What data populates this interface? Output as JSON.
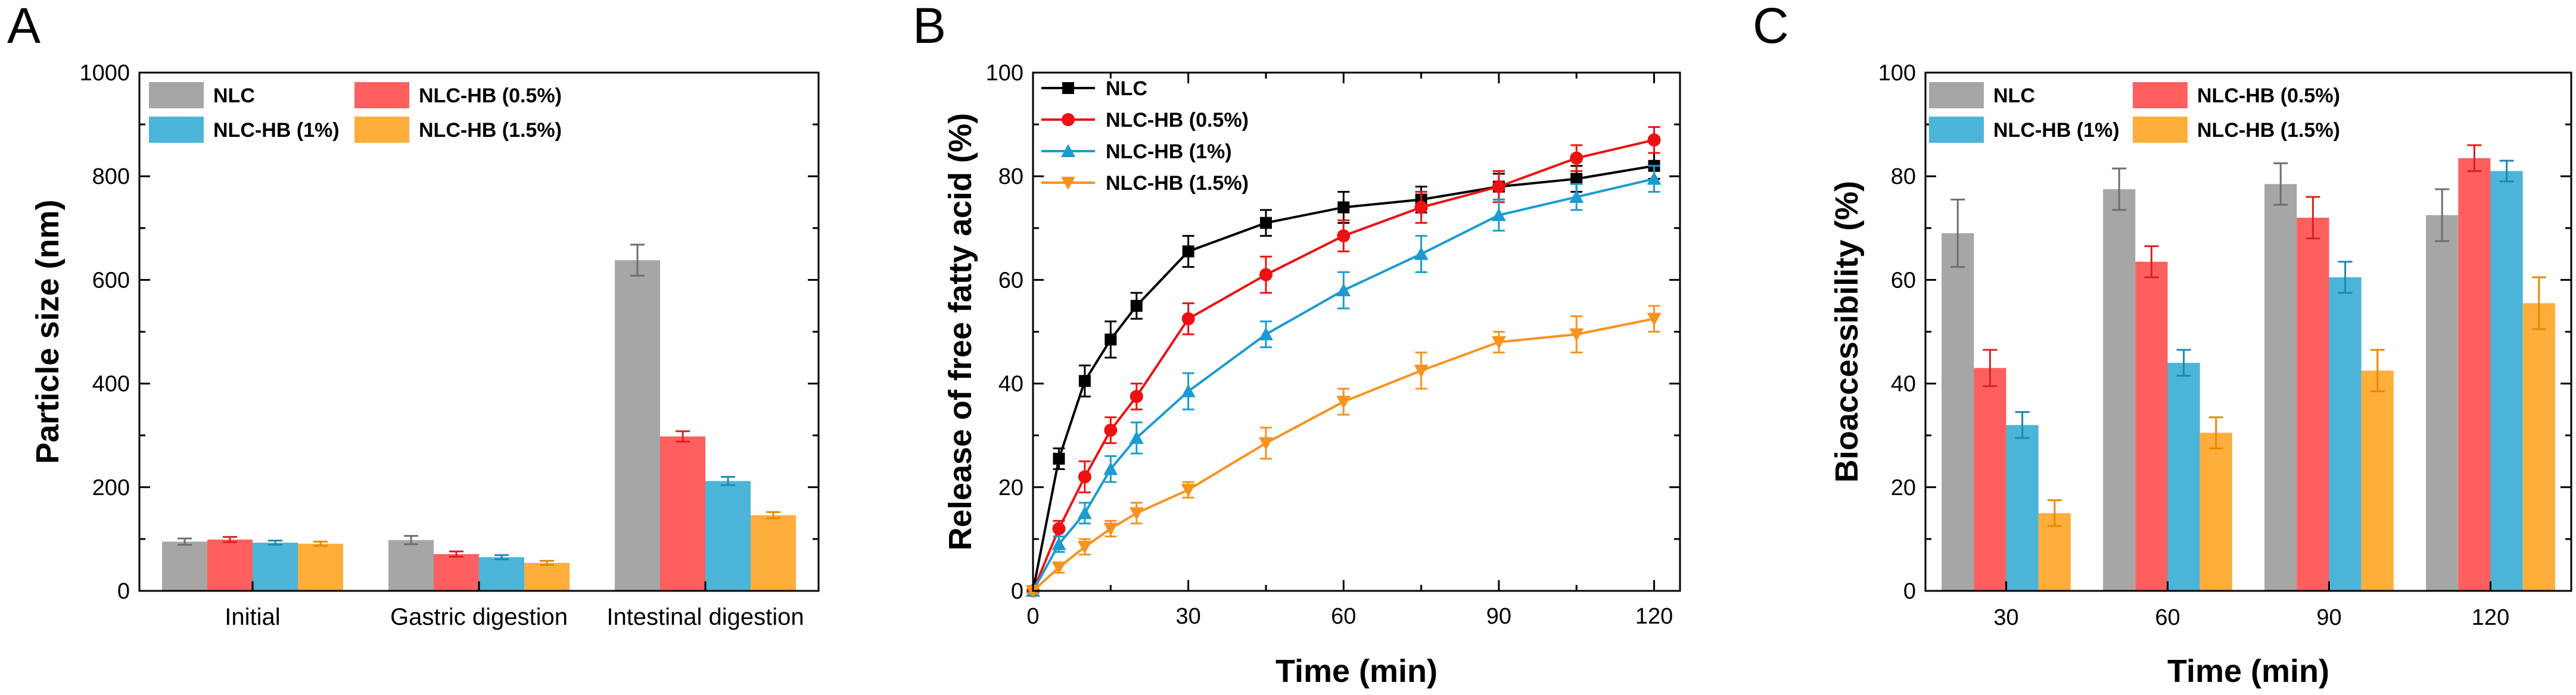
{
  "chart_data": [
    {
      "panel": "A",
      "type": "bar",
      "title": "",
      "xlabel": "",
      "ylabel": "Particle size (nm)",
      "ylim": [
        0,
        1000
      ],
      "yticks": [
        "0",
        "200",
        "400",
        "600",
        "800",
        "1000"
      ],
      "categories": [
        "Initial",
        "Gastric digestion",
        "Intestinal digestion"
      ],
      "legend_position": "top-left",
      "series": [
        {
          "name": "NLC",
          "color": "#a6a6a6",
          "values": [
            95,
            98,
            638
          ],
          "errors": [
            6,
            8,
            30
          ]
        },
        {
          "name": "NLC-HB (0.5%)",
          "color": "#ff5f5f",
          "values": [
            99,
            71,
            298
          ],
          "errors": [
            5,
            5,
            10
          ]
        },
        {
          "name": "NLC-HB (1%)",
          "color": "#4bb5d9",
          "values": [
            93,
            65,
            212
          ],
          "errors": [
            4,
            4,
            8
          ]
        },
        {
          "name": "NLC-HB (1.5%)",
          "color": "#ffad3b",
          "values": [
            91,
            54,
            146
          ],
          "errors": [
            4,
            4,
            6
          ]
        }
      ]
    },
    {
      "panel": "B",
      "type": "line",
      "title": "",
      "xlabel": "Time (min)",
      "ylabel": "Release of free fatty acid (%)",
      "xlim": [
        0,
        125
      ],
      "ylim": [
        0,
        100
      ],
      "xticks": [
        "0",
        "30",
        "60",
        "90",
        "120"
      ],
      "yticks": [
        "0",
        "20",
        "40",
        "60",
        "80",
        "100"
      ],
      "legend_position": "top-left",
      "x": [
        0,
        5,
        10,
        15,
        20,
        30,
        45,
        60,
        75,
        90,
        105,
        120
      ],
      "series": [
        {
          "name": "NLC",
          "color": "#000000",
          "marker": "square",
          "values": [
            0,
            25.5,
            40.5,
            48.5,
            55,
            65.5,
            71,
            74,
            75.5,
            78,
            79.5,
            82
          ],
          "errors": [
            0.5,
            2,
            3,
            3.5,
            2.5,
            3,
            2.5,
            3,
            2.5,
            2.5,
            2.5,
            2.5
          ]
        },
        {
          "name": "NLC-HB (0.5%)",
          "color": "#ee1111",
          "marker": "circle",
          "values": [
            0,
            12,
            22,
            31,
            37.5,
            52.5,
            61,
            68.5,
            74,
            78,
            83.5,
            87
          ],
          "errors": [
            0.5,
            1.5,
            3,
            2.5,
            2.5,
            3,
            3.5,
            3,
            3,
            3,
            2.5,
            2.5
          ]
        },
        {
          "name": "NLC-HB (1%)",
          "color": "#1a9bd1",
          "marker": "triangle-up",
          "values": [
            0,
            9,
            15,
            23.5,
            29.5,
            38.5,
            49.5,
            58,
            65,
            72.5,
            76,
            79.5
          ],
          "errors": [
            0.5,
            1.5,
            2,
            2.5,
            3,
            3.5,
            2.5,
            3.5,
            3.5,
            3,
            2.5,
            2.5
          ]
        },
        {
          "name": "NLC-HB (1.5%)",
          "color": "#f7931e",
          "marker": "triangle-down",
          "values": [
            0,
            4.5,
            8.5,
            12,
            15,
            19.5,
            28.5,
            36.5,
            42.5,
            48,
            49.5,
            52.5
          ],
          "errors": [
            0.5,
            1,
            1.5,
            1.5,
            2,
            1.5,
            3,
            2.5,
            3.5,
            2,
            3.5,
            2.5
          ]
        }
      ]
    },
    {
      "panel": "C",
      "type": "bar",
      "title": "",
      "xlabel": "Time (min)",
      "ylabel": "Bioaccessibility (%)",
      "ylim": [
        0,
        100
      ],
      "yticks": [
        "0",
        "20",
        "40",
        "60",
        "80",
        "100"
      ],
      "categories": [
        "30",
        "60",
        "90",
        "120"
      ],
      "legend_position": "top-left",
      "series": [
        {
          "name": "NLC",
          "color": "#a6a6a6",
          "values": [
            69,
            77.5,
            78.5,
            72.5
          ],
          "errors": [
            6.5,
            4,
            4,
            5
          ]
        },
        {
          "name": "NLC-HB (0.5%)",
          "color": "#ff5f5f",
          "values": [
            43,
            63.5,
            72,
            83.5
          ],
          "errors": [
            3.5,
            3,
            4,
            2.5
          ]
        },
        {
          "name": "NLC-HB (1%)",
          "color": "#4bb5d9",
          "values": [
            32,
            44,
            60.5,
            81
          ],
          "errors": [
            2.5,
            2.5,
            3,
            2
          ]
        },
        {
          "name": "NLC-HB (1.5%)",
          "color": "#ffad3b",
          "values": [
            15,
            30.5,
            42.5,
            55.5
          ],
          "errors": [
            2.5,
            3,
            4,
            5
          ]
        }
      ]
    }
  ]
}
